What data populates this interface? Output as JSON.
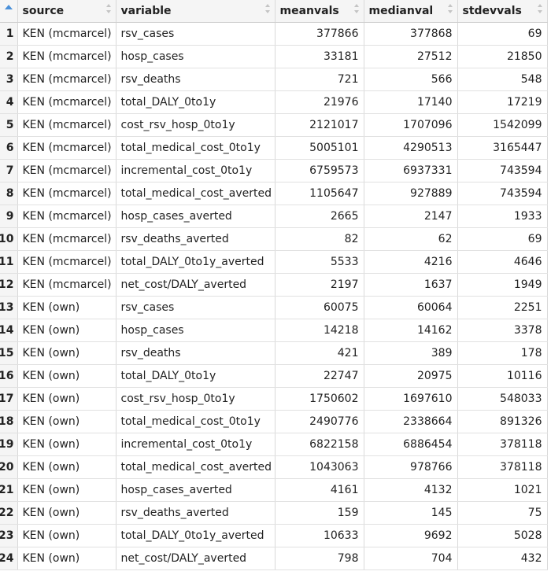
{
  "columns": [
    {
      "key": "source",
      "label": "source"
    },
    {
      "key": "variable",
      "label": "variable"
    },
    {
      "key": "meanvals",
      "label": "meanvals"
    },
    {
      "key": "medianval",
      "label": "medianval"
    },
    {
      "key": "stdevvals",
      "label": "stdevvals"
    }
  ],
  "rows": [
    {
      "idx": "1",
      "source": "KEN (mcmarcel)",
      "variable": "rsv_cases",
      "meanvals": "377866",
      "medianval": "377868",
      "stdevvals": "69"
    },
    {
      "idx": "2",
      "source": "KEN (mcmarcel)",
      "variable": "hosp_cases",
      "meanvals": "33181",
      "medianval": "27512",
      "stdevvals": "21850"
    },
    {
      "idx": "3",
      "source": "KEN (mcmarcel)",
      "variable": "rsv_deaths",
      "meanvals": "721",
      "medianval": "566",
      "stdevvals": "548"
    },
    {
      "idx": "4",
      "source": "KEN (mcmarcel)",
      "variable": "total_DALY_0to1y",
      "meanvals": "21976",
      "medianval": "17140",
      "stdevvals": "17219"
    },
    {
      "idx": "5",
      "source": "KEN (mcmarcel)",
      "variable": "cost_rsv_hosp_0to1y",
      "meanvals": "2121017",
      "medianval": "1707096",
      "stdevvals": "1542099"
    },
    {
      "idx": "6",
      "source": "KEN (mcmarcel)",
      "variable": "total_medical_cost_0to1y",
      "meanvals": "5005101",
      "medianval": "4290513",
      "stdevvals": "3165447"
    },
    {
      "idx": "7",
      "source": "KEN (mcmarcel)",
      "variable": "incremental_cost_0to1y",
      "meanvals": "6759573",
      "medianval": "6937331",
      "stdevvals": "743594"
    },
    {
      "idx": "8",
      "source": "KEN (mcmarcel)",
      "variable": "total_medical_cost_averted",
      "meanvals": "1105647",
      "medianval": "927889",
      "stdevvals": "743594"
    },
    {
      "idx": "9",
      "source": "KEN (mcmarcel)",
      "variable": "hosp_cases_averted",
      "meanvals": "2665",
      "medianval": "2147",
      "stdevvals": "1933"
    },
    {
      "idx": "10",
      "source": "KEN (mcmarcel)",
      "variable": "rsv_deaths_averted",
      "meanvals": "82",
      "medianval": "62",
      "stdevvals": "69"
    },
    {
      "idx": "11",
      "source": "KEN (mcmarcel)",
      "variable": "total_DALY_0to1y_averted",
      "meanvals": "5533",
      "medianval": "4216",
      "stdevvals": "4646"
    },
    {
      "idx": "12",
      "source": "KEN (mcmarcel)",
      "variable": "net_cost/DALY_averted",
      "meanvals": "2197",
      "medianval": "1637",
      "stdevvals": "1949"
    },
    {
      "idx": "13",
      "source": "KEN (own)",
      "variable": "rsv_cases",
      "meanvals": "60075",
      "medianval": "60064",
      "stdevvals": "2251"
    },
    {
      "idx": "14",
      "source": "KEN (own)",
      "variable": "hosp_cases",
      "meanvals": "14218",
      "medianval": "14162",
      "stdevvals": "3378"
    },
    {
      "idx": "15",
      "source": "KEN (own)",
      "variable": "rsv_deaths",
      "meanvals": "421",
      "medianval": "389",
      "stdevvals": "178"
    },
    {
      "idx": "16",
      "source": "KEN (own)",
      "variable": "total_DALY_0to1y",
      "meanvals": "22747",
      "medianval": "20975",
      "stdevvals": "10116"
    },
    {
      "idx": "17",
      "source": "KEN (own)",
      "variable": "cost_rsv_hosp_0to1y",
      "meanvals": "1750602",
      "medianval": "1697610",
      "stdevvals": "548033"
    },
    {
      "idx": "18",
      "source": "KEN (own)",
      "variable": "total_medical_cost_0to1y",
      "meanvals": "2490776",
      "medianval": "2338664",
      "stdevvals": "891326"
    },
    {
      "idx": "19",
      "source": "KEN (own)",
      "variable": "incremental_cost_0to1y",
      "meanvals": "6822158",
      "medianval": "6886454",
      "stdevvals": "378118"
    },
    {
      "idx": "20",
      "source": "KEN (own)",
      "variable": "total_medical_cost_averted",
      "meanvals": "1043063",
      "medianval": "978766",
      "stdevvals": "378118"
    },
    {
      "idx": "21",
      "source": "KEN (own)",
      "variable": "hosp_cases_averted",
      "meanvals": "4161",
      "medianval": "4132",
      "stdevvals": "1021"
    },
    {
      "idx": "22",
      "source": "KEN (own)",
      "variable": "rsv_deaths_averted",
      "meanvals": "159",
      "medianval": "145",
      "stdevvals": "75"
    },
    {
      "idx": "23",
      "source": "KEN (own)",
      "variable": "total_DALY_0to1y_averted",
      "meanvals": "10633",
      "medianval": "9692",
      "stdevvals": "5028"
    },
    {
      "idx": "24",
      "source": "KEN (own)",
      "variable": "net_cost/DALY_averted",
      "meanvals": "798",
      "medianval": "704",
      "stdevvals": "432"
    }
  ],
  "icons": {
    "index_sort": "sort-ascending-icon",
    "column_sort": "sort-both-icon"
  },
  "colors": {
    "sort_accent": "#4a90d9",
    "header_bg": "#f5f5f5",
    "grid_line": "#d9d9d9"
  }
}
